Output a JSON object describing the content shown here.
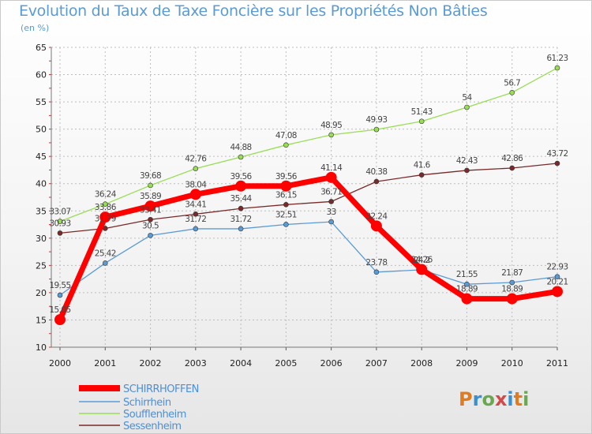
{
  "header": {
    "title": "Evolution du Taux de Taxe Foncière sur les Propriétés Non Bâties",
    "unit": "(en %)"
  },
  "chart_data": {
    "type": "line",
    "title": "Evolution du Taux de Taxe Foncière sur les Propriétés Non Bâties",
    "ylabel": "(en %)",
    "xlabel": "",
    "x": [
      "2000",
      "2001",
      "2002",
      "2003",
      "2004",
      "2005",
      "2006",
      "2007",
      "2008",
      "2009",
      "2010",
      "2011"
    ],
    "ylim": [
      10,
      65
    ],
    "yticks": [
      10,
      15,
      20,
      25,
      30,
      35,
      40,
      45,
      50,
      55,
      60,
      65
    ],
    "grid": true,
    "legend": "bottom-left",
    "series": [
      {
        "name": "SCHIRRHOFFEN",
        "color": "#ff0000",
        "values": [
          15.05,
          33.86,
          35.89,
          38.04,
          39.56,
          39.56,
          41.14,
          32.24,
          24.26,
          18.89,
          18.89,
          20.21
        ],
        "labels": [
          "15.05",
          "33.86",
          "35.89",
          "38.04",
          "39.56",
          "39.56",
          "41.14",
          "32.24",
          "24.26",
          "18.89",
          "18.89",
          "20.21"
        ]
      },
      {
        "name": "Schirrhein",
        "color": "#5b9bd5",
        "values": [
          19.55,
          25.42,
          30.5,
          31.72,
          31.72,
          32.51,
          33.0,
          23.78,
          24.2,
          21.55,
          21.87,
          22.93
        ],
        "labels": [
          "19.55",
          "25.42",
          "30.5",
          "31.72",
          "31.72",
          "32.51",
          "33",
          "23.78",
          "24.2",
          "21.55",
          "21.87",
          "22.93"
        ]
      },
      {
        "name": "Soufflenheim",
        "color": "#99dd55",
        "values": [
          33.07,
          36.24,
          39.68,
          42.76,
          44.88,
          47.08,
          48.95,
          49.93,
          51.43,
          54.0,
          56.7,
          61.23
        ],
        "labels": [
          "33.07",
          "36.24",
          "39.68",
          "42.76",
          "44.88",
          "47.08",
          "48.95",
          "49.93",
          "51.43",
          "54",
          "56.7",
          "61.23"
        ]
      },
      {
        "name": "Sessenheim",
        "color": "#7a2a2a",
        "values": [
          30.93,
          31.79,
          33.41,
          34.41,
          35.44,
          36.15,
          36.71,
          40.38,
          41.6,
          42.43,
          42.86,
          43.72
        ],
        "labels": [
          "30.93",
          "31.79",
          "33.41",
          "34.41",
          "35.44",
          "36.15",
          "36.71",
          "40.38",
          "41.6",
          "42.43",
          "42.86",
          "43.72"
        ]
      }
    ]
  },
  "branding": {
    "logo_text": "Proxiti"
  }
}
